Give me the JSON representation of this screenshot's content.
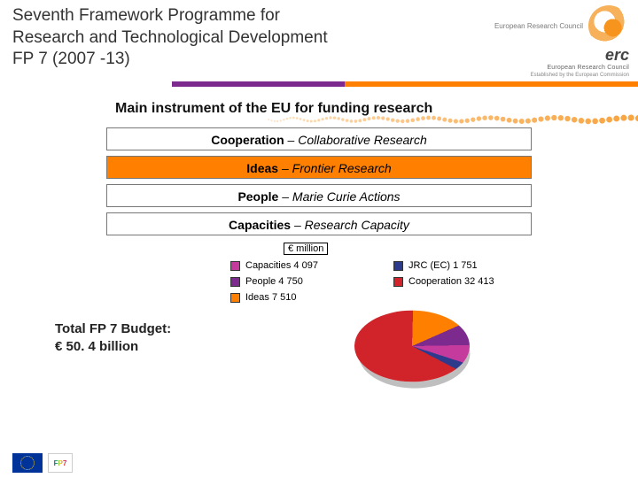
{
  "header": {
    "title_line1": "Seventh Framework Programme for",
    "title_line2": "Research and Technological Development",
    "title_line3": "FP 7 (2007 -13)",
    "erc_label": "European Research Council",
    "erc_acronym": "erc",
    "erc_sub": "European Research Council",
    "erc_tagline": "Established by the European Commission"
  },
  "divider": {
    "segments": [
      {
        "color": "#ffffff",
        "width_pct": 27
      },
      {
        "color": "#7c2a8d",
        "width_pct": 27
      },
      {
        "color": "#ff7f00",
        "width_pct": 46
      }
    ]
  },
  "dots": {
    "color": "#f7941e",
    "count": 90
  },
  "instrument_line": "Main instrument of the EU for funding research",
  "programmes": [
    {
      "bold": "Cooperation",
      "rest": " – Collaborative Research",
      "highlight": false
    },
    {
      "bold": "Ideas",
      "rest": " – Frontier Research",
      "highlight": true
    },
    {
      "bold": "People",
      "rest": " – Marie Curie Actions",
      "highlight": false
    },
    {
      "bold": "Capacities",
      "rest": " – Research Capacity",
      "highlight": false
    }
  ],
  "budget": {
    "line1": "Total FP 7 Budget:",
    "line2": "€ 50. 4 billion"
  },
  "chart": {
    "type": "pie",
    "unit_label": "€ million",
    "legend": [
      {
        "label": "Capacities 4 097",
        "color": "#c53a9d",
        "value": 4097
      },
      {
        "label": "JRC (EC) 1 751",
        "color": "#2e3a8c",
        "value": 1751
      },
      {
        "label": "People 4 750",
        "color": "#7c2a8d",
        "value": 4750
      },
      {
        "label": "Cooperation 32 413",
        "color": "#d1232a",
        "value": 32413
      },
      {
        "label": "Ideas 7 510",
        "color": "#ff7f00",
        "value": 7510
      }
    ],
    "background_color": "#ffffff",
    "label_fontsize": 11
  },
  "footer": {
    "eu_flag_bg": "#003399",
    "eu_star_color": "#ffcc00",
    "fp7_text": "FP7"
  }
}
